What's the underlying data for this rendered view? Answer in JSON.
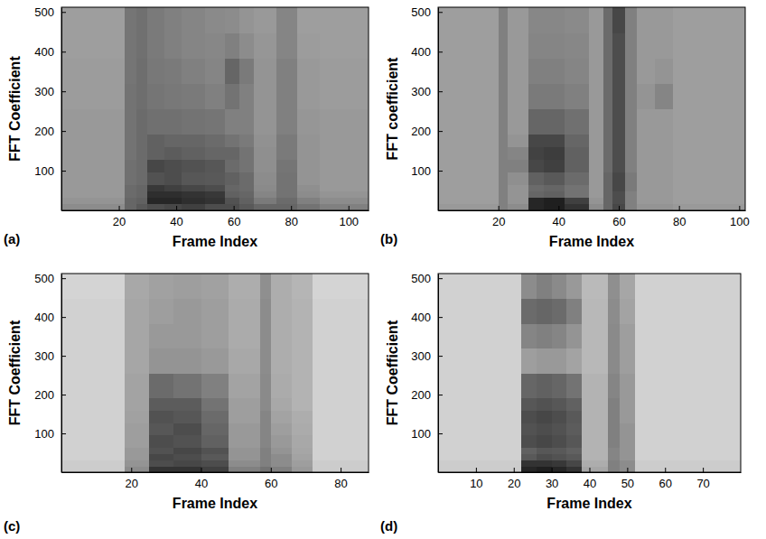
{
  "chart_data": [
    {
      "type": "heatmap",
      "title": "(a)",
      "x_label": "Frame Index",
      "y_label": "FFT Coefficient",
      "xlim": [
        0,
        107
      ],
      "xticks": [
        20,
        40,
        60,
        80,
        100
      ],
      "ylim": [
        0,
        512
      ],
      "yticks": [
        100,
        200,
        300,
        400,
        500
      ],
      "zlim": [
        0,
        1
      ],
      "x_edges": [
        0,
        10,
        22,
        26,
        30,
        36,
        42,
        50,
        57,
        62,
        67,
        75,
        82,
        90,
        107
      ],
      "y_edges": [
        0,
        16,
        32,
        48,
        64,
        96,
        128,
        160,
        192,
        256,
        320,
        384,
        448,
        512
      ],
      "z": [
        [
          0.45,
          0.45,
          0.6,
          0.65,
          0.7,
          0.72,
          0.75,
          0.7,
          0.7,
          0.65,
          0.6,
          0.6,
          0.55,
          0.5
        ],
        [
          0.42,
          0.42,
          0.6,
          0.62,
          0.85,
          0.85,
          0.82,
          0.8,
          0.68,
          0.62,
          0.52,
          0.58,
          0.5,
          0.45
        ],
        [
          0.4,
          0.4,
          0.58,
          0.6,
          0.82,
          0.82,
          0.8,
          0.78,
          0.62,
          0.6,
          0.48,
          0.55,
          0.45,
          0.42
        ],
        [
          0.4,
          0.4,
          0.58,
          0.6,
          0.78,
          0.75,
          0.72,
          0.7,
          0.6,
          0.58,
          0.46,
          0.55,
          0.44,
          0.4
        ],
        [
          0.4,
          0.4,
          0.56,
          0.58,
          0.68,
          0.7,
          0.66,
          0.65,
          0.62,
          0.58,
          0.45,
          0.55,
          0.42,
          0.4
        ],
        [
          0.4,
          0.4,
          0.56,
          0.58,
          0.72,
          0.7,
          0.68,
          0.66,
          0.58,
          0.55,
          0.44,
          0.54,
          0.42,
          0.4
        ],
        [
          0.4,
          0.4,
          0.55,
          0.58,
          0.62,
          0.64,
          0.62,
          0.6,
          0.6,
          0.55,
          0.44,
          0.52,
          0.42,
          0.4
        ],
        [
          0.4,
          0.4,
          0.55,
          0.58,
          0.62,
          0.6,
          0.6,
          0.58,
          0.55,
          0.52,
          0.43,
          0.52,
          0.42,
          0.4
        ],
        [
          0.4,
          0.4,
          0.55,
          0.58,
          0.56,
          0.56,
          0.55,
          0.54,
          0.5,
          0.5,
          0.42,
          0.5,
          0.41,
          0.4
        ],
        [
          0.39,
          0.39,
          0.55,
          0.57,
          0.54,
          0.53,
          0.52,
          0.5,
          0.55,
          0.5,
          0.42,
          0.5,
          0.4,
          0.39
        ],
        [
          0.39,
          0.39,
          0.54,
          0.57,
          0.53,
          0.52,
          0.5,
          0.48,
          0.6,
          0.52,
          0.42,
          0.5,
          0.4,
          0.39
        ],
        [
          0.38,
          0.38,
          0.54,
          0.56,
          0.52,
          0.5,
          0.48,
          0.47,
          0.5,
          0.45,
          0.41,
          0.48,
          0.39,
          0.38
        ],
        [
          0.38,
          0.38,
          0.54,
          0.56,
          0.52,
          0.5,
          0.48,
          0.46,
          0.45,
          0.42,
          0.4,
          0.48,
          0.38,
          0.38
        ]
      ]
    },
    {
      "type": "heatmap",
      "title": "(b)",
      "x_label": "Frame Index",
      "y_label": "FFT coefficient",
      "xlim": [
        0,
        102
      ],
      "xticks": [
        20,
        40,
        60,
        80,
        100
      ],
      "ylim": [
        0,
        512
      ],
      "yticks": [
        100,
        200,
        300,
        400,
        500
      ],
      "zlim": [
        0,
        1
      ],
      "x_edges": [
        0,
        20,
        23,
        30,
        35,
        42,
        50,
        55,
        58,
        62,
        66,
        72,
        78,
        102
      ],
      "y_edges": [
        0,
        16,
        32,
        48,
        64,
        96,
        128,
        160,
        192,
        256,
        320,
        384,
        448,
        512
      ],
      "z": [
        [
          0.4,
          0.5,
          0.45,
          0.85,
          0.88,
          0.8,
          0.45,
          0.6,
          0.72,
          0.5,
          0.42,
          0.42,
          0.4
        ],
        [
          0.38,
          0.5,
          0.42,
          0.85,
          0.88,
          0.75,
          0.42,
          0.6,
          0.7,
          0.5,
          0.4,
          0.4,
          0.38
        ],
        [
          0.38,
          0.5,
          0.42,
          0.6,
          0.62,
          0.55,
          0.4,
          0.6,
          0.7,
          0.5,
          0.4,
          0.4,
          0.38
        ],
        [
          0.38,
          0.5,
          0.42,
          0.58,
          0.6,
          0.55,
          0.4,
          0.6,
          0.72,
          0.52,
          0.4,
          0.4,
          0.38
        ],
        [
          0.38,
          0.5,
          0.44,
          0.62,
          0.65,
          0.58,
          0.4,
          0.6,
          0.72,
          0.52,
          0.4,
          0.4,
          0.38
        ],
        [
          0.38,
          0.5,
          0.5,
          0.72,
          0.75,
          0.62,
          0.4,
          0.58,
          0.7,
          0.5,
          0.4,
          0.4,
          0.38
        ],
        [
          0.38,
          0.5,
          0.48,
          0.74,
          0.76,
          0.62,
          0.4,
          0.58,
          0.7,
          0.5,
          0.4,
          0.4,
          0.38
        ],
        [
          0.38,
          0.5,
          0.42,
          0.72,
          0.72,
          0.6,
          0.4,
          0.58,
          0.7,
          0.5,
          0.4,
          0.4,
          0.38
        ],
        [
          0.38,
          0.5,
          0.4,
          0.6,
          0.6,
          0.56,
          0.4,
          0.58,
          0.7,
          0.5,
          0.4,
          0.4,
          0.38
        ],
        [
          0.38,
          0.5,
          0.4,
          0.52,
          0.52,
          0.5,
          0.4,
          0.58,
          0.7,
          0.5,
          0.42,
          0.48,
          0.38
        ],
        [
          0.38,
          0.5,
          0.4,
          0.5,
          0.5,
          0.48,
          0.4,
          0.58,
          0.7,
          0.5,
          0.4,
          0.42,
          0.38
        ],
        [
          0.38,
          0.5,
          0.4,
          0.48,
          0.48,
          0.47,
          0.4,
          0.58,
          0.7,
          0.5,
          0.4,
          0.4,
          0.38
        ],
        [
          0.38,
          0.5,
          0.4,
          0.47,
          0.47,
          0.46,
          0.4,
          0.58,
          0.72,
          0.5,
          0.4,
          0.4,
          0.38
        ]
      ]
    },
    {
      "type": "heatmap",
      "title": "(c)",
      "x_label": "Frame Index",
      "y_label": "FFT Coefficient",
      "xlim": [
        0,
        88
      ],
      "xticks": [
        20,
        40,
        60,
        80
      ],
      "ylim": [
        0,
        512
      ],
      "yticks": [
        100,
        200,
        300,
        400,
        500
      ],
      "zlim": [
        0,
        1
      ],
      "x_edges": [
        0,
        18,
        25,
        32,
        40,
        48,
        57,
        60,
        66,
        72,
        88
      ],
      "y_edges": [
        0,
        16,
        32,
        48,
        64,
        96,
        128,
        160,
        192,
        256,
        320,
        384,
        448,
        512
      ],
      "z": [
        [
          0.2,
          0.45,
          0.8,
          0.8,
          0.75,
          0.5,
          0.55,
          0.5,
          0.4,
          0.2
        ],
        [
          0.2,
          0.42,
          0.7,
          0.72,
          0.7,
          0.45,
          0.5,
          0.45,
          0.38,
          0.2
        ],
        [
          0.18,
          0.4,
          0.72,
          0.7,
          0.65,
          0.42,
          0.5,
          0.45,
          0.36,
          0.18
        ],
        [
          0.18,
          0.4,
          0.68,
          0.72,
          0.68,
          0.42,
          0.5,
          0.42,
          0.35,
          0.18
        ],
        [
          0.18,
          0.38,
          0.7,
          0.68,
          0.62,
          0.4,
          0.48,
          0.4,
          0.34,
          0.18
        ],
        [
          0.18,
          0.38,
          0.66,
          0.7,
          0.6,
          0.4,
          0.48,
          0.38,
          0.33,
          0.18
        ],
        [
          0.18,
          0.37,
          0.68,
          0.66,
          0.58,
          0.38,
          0.48,
          0.36,
          0.32,
          0.18
        ],
        [
          0.18,
          0.36,
          0.64,
          0.64,
          0.55,
          0.38,
          0.46,
          0.34,
          0.3,
          0.18
        ],
        [
          0.18,
          0.36,
          0.58,
          0.55,
          0.5,
          0.36,
          0.46,
          0.33,
          0.3,
          0.18
        ],
        [
          0.18,
          0.35,
          0.42,
          0.42,
          0.4,
          0.34,
          0.45,
          0.32,
          0.3,
          0.18
        ],
        [
          0.18,
          0.35,
          0.4,
          0.4,
          0.38,
          0.33,
          0.45,
          0.32,
          0.3,
          0.18
        ],
        [
          0.18,
          0.35,
          0.38,
          0.4,
          0.38,
          0.33,
          0.45,
          0.32,
          0.3,
          0.18
        ],
        [
          0.17,
          0.34,
          0.37,
          0.38,
          0.37,
          0.32,
          0.44,
          0.32,
          0.29,
          0.17
        ]
      ]
    },
    {
      "type": "heatmap",
      "title": "(d)",
      "x_label": "Frame Index",
      "y_label": "FFT Coefficient",
      "xlim": [
        0,
        80
      ],
      "xticks": [
        10,
        20,
        30,
        40,
        50,
        60,
        70
      ],
      "ylim": [
        0,
        512
      ],
      "yticks": [
        100,
        200,
        300,
        400,
        500
      ],
      "zlim": [
        0,
        1
      ],
      "x_edges": [
        0,
        22,
        26,
        30,
        34,
        38,
        45,
        48,
        52,
        80
      ],
      "y_edges": [
        0,
        16,
        32,
        48,
        64,
        96,
        128,
        160,
        192,
        256,
        320,
        384,
        448,
        512
      ],
      "z": [
        [
          0.2,
          0.85,
          0.88,
          0.85,
          0.8,
          0.35,
          0.5,
          0.45,
          0.2
        ],
        [
          0.2,
          0.8,
          0.8,
          0.78,
          0.72,
          0.32,
          0.5,
          0.45,
          0.2
        ],
        [
          0.18,
          0.65,
          0.7,
          0.68,
          0.65,
          0.3,
          0.48,
          0.42,
          0.18
        ],
        [
          0.18,
          0.62,
          0.66,
          0.65,
          0.62,
          0.3,
          0.48,
          0.42,
          0.18
        ],
        [
          0.18,
          0.7,
          0.72,
          0.7,
          0.66,
          0.3,
          0.5,
          0.42,
          0.18
        ],
        [
          0.18,
          0.68,
          0.7,
          0.68,
          0.64,
          0.3,
          0.5,
          0.42,
          0.18
        ],
        [
          0.18,
          0.7,
          0.72,
          0.7,
          0.65,
          0.3,
          0.5,
          0.4,
          0.18
        ],
        [
          0.18,
          0.66,
          0.68,
          0.66,
          0.62,
          0.3,
          0.5,
          0.4,
          0.18
        ],
        [
          0.18,
          0.6,
          0.62,
          0.6,
          0.55,
          0.3,
          0.48,
          0.4,
          0.18
        ],
        [
          0.18,
          0.38,
          0.4,
          0.4,
          0.36,
          0.28,
          0.46,
          0.38,
          0.18
        ],
        [
          0.18,
          0.48,
          0.5,
          0.48,
          0.42,
          0.28,
          0.46,
          0.38,
          0.18
        ],
        [
          0.18,
          0.58,
          0.6,
          0.58,
          0.5,
          0.28,
          0.45,
          0.36,
          0.18
        ],
        [
          0.18,
          0.45,
          0.5,
          0.46,
          0.4,
          0.27,
          0.44,
          0.35,
          0.18
        ]
      ]
    }
  ]
}
